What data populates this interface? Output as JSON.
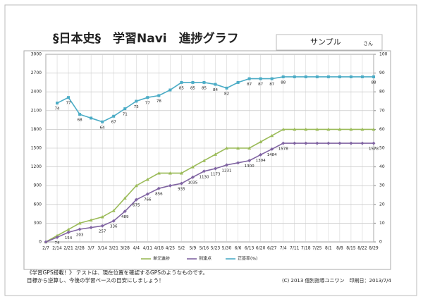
{
  "chart_data": {
    "type": "line",
    "title": "§日本史§　学習Navi　進捗グラフ",
    "student": "サンプル",
    "honorific": "さん",
    "categories": [
      "2/7",
      "2/14",
      "2/21",
      "2/28",
      "3/7",
      "3/14",
      "3/21",
      "3/28",
      "4/4",
      "4/11",
      "4/18",
      "4/25",
      "5/2",
      "5/9",
      "5/16",
      "5/23",
      "5/30",
      "6/6",
      "6/13",
      "6/20",
      "6/27",
      "7/4",
      "7/11",
      "7/18",
      "7/25",
      "8/1",
      "8/8",
      "8/15",
      "8/22",
      "8/29"
    ],
    "series": [
      {
        "name": "単元進捗",
        "color": "#9bbb59",
        "axis": "y",
        "values": [
          0,
          100,
          200,
          300,
          350,
          400,
          500,
          700,
          900,
          1000,
          1100,
          1100,
          1100,
          1200,
          1300,
          1400,
          1500,
          1500,
          1500,
          1600,
          1700,
          1800,
          1800,
          1800,
          1800,
          1800,
          1800,
          1800,
          1800,
          1800
        ]
      },
      {
        "name": "到達点",
        "color": "#8064a2",
        "axis": "y",
        "values": [
          0,
          74,
          154,
          203,
          230,
          257,
          336,
          489,
          675,
          766,
          856,
          900,
          935,
          1035,
          1130,
          1173,
          1231,
          1265,
          1300,
          1394,
          1484,
          1578,
          1578,
          1578,
          1578,
          1578,
          1578,
          1578,
          1578,
          1578
        ],
        "value_labels": [
          null,
          "74",
          "154",
          "203",
          null,
          "257",
          "336",
          "489",
          "675",
          "766",
          "856",
          null,
          "935",
          "1035",
          "1130",
          "1173",
          "1231",
          null,
          "1300",
          "1394",
          "1484",
          "1578",
          null,
          null,
          null,
          null,
          null,
          null,
          null,
          "1578"
        ]
      },
      {
        "name": "正答率(%)",
        "color": "#4bacc6",
        "axis": "y2",
        "values": [
          null,
          74,
          77,
          68,
          66,
          64,
          67,
          71,
          75,
          77,
          78,
          81,
          85,
          85,
          85,
          84,
          82,
          85,
          87,
          87,
          87,
          88,
          88,
          88,
          88,
          88,
          88,
          88,
          88,
          88
        ],
        "value_labels": [
          null,
          "74",
          "77",
          "68",
          null,
          "64",
          "67",
          "71",
          "75",
          "77",
          "78",
          null,
          "85",
          "85",
          "85",
          "84",
          "82",
          null,
          "87",
          "87",
          "87",
          "88",
          null,
          null,
          null,
          null,
          null,
          null,
          null,
          "88"
        ]
      }
    ],
    "ylim": [
      0,
      3000
    ],
    "yticks": [
      0,
      300,
      600,
      900,
      1200,
      1500,
      1800,
      2100,
      2400,
      2700,
      3000
    ],
    "y2lim": [
      0,
      100
    ],
    "y2ticks": [
      0,
      10,
      20,
      30,
      40,
      50,
      60,
      70,
      80,
      90,
      100
    ],
    "grid": true,
    "note1": "《学習GPS搭載！》 テストは、現在位置を確認するGPSのようなものです。",
    "note2": "目標から逆算し、今後の学習ペースの目安にしましょう！",
    "copyright": "(C) 2013 個別指導ユニワン　印刷日：2013/7/4"
  }
}
